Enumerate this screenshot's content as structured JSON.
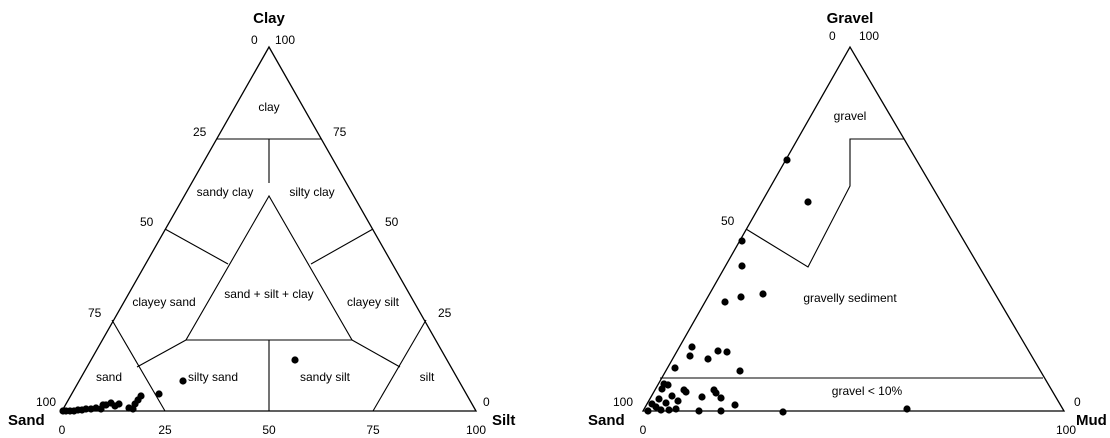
{
  "left_diagram": {
    "apex_labels": {
      "top": "Clay",
      "left": "Sand",
      "right": "Silt"
    },
    "top_tick_labels": {
      "zero": "0",
      "hundred": "100"
    },
    "left_side_ticks": [
      "25",
      "50",
      "75",
      "100"
    ],
    "right_side_ticks": [
      "75",
      "50",
      "25",
      "0"
    ],
    "bottom_ticks": [
      "0",
      "25",
      "50",
      "75",
      "100"
    ],
    "regions": {
      "clay": "clay",
      "sandy_clay": "sandy clay",
      "silty_clay": "silty clay",
      "sand_silt_clay": "sand + silt + clay",
      "clayey_sand": "clayey sand",
      "clayey_silt": "clayey silt",
      "sand": "sand",
      "silty_sand": "silty sand",
      "sandy_silt": "sandy silt",
      "silt": "silt"
    }
  },
  "right_diagram": {
    "apex_labels": {
      "top": "Gravel",
      "left": "Sand",
      "right": "Mud"
    },
    "top_tick_labels": {
      "zero": "0",
      "hundred": "100"
    },
    "left_side_ticks": [
      "50",
      "100"
    ],
    "bottom_left_tick": "0",
    "right_side_tick": "0",
    "bottom_right_tick": "100",
    "regions": {
      "gravel": "gravel",
      "gravelly_sediment": "gravelly sediment",
      "gravel_lt_10": "gravel < 10%"
    }
  }
}
